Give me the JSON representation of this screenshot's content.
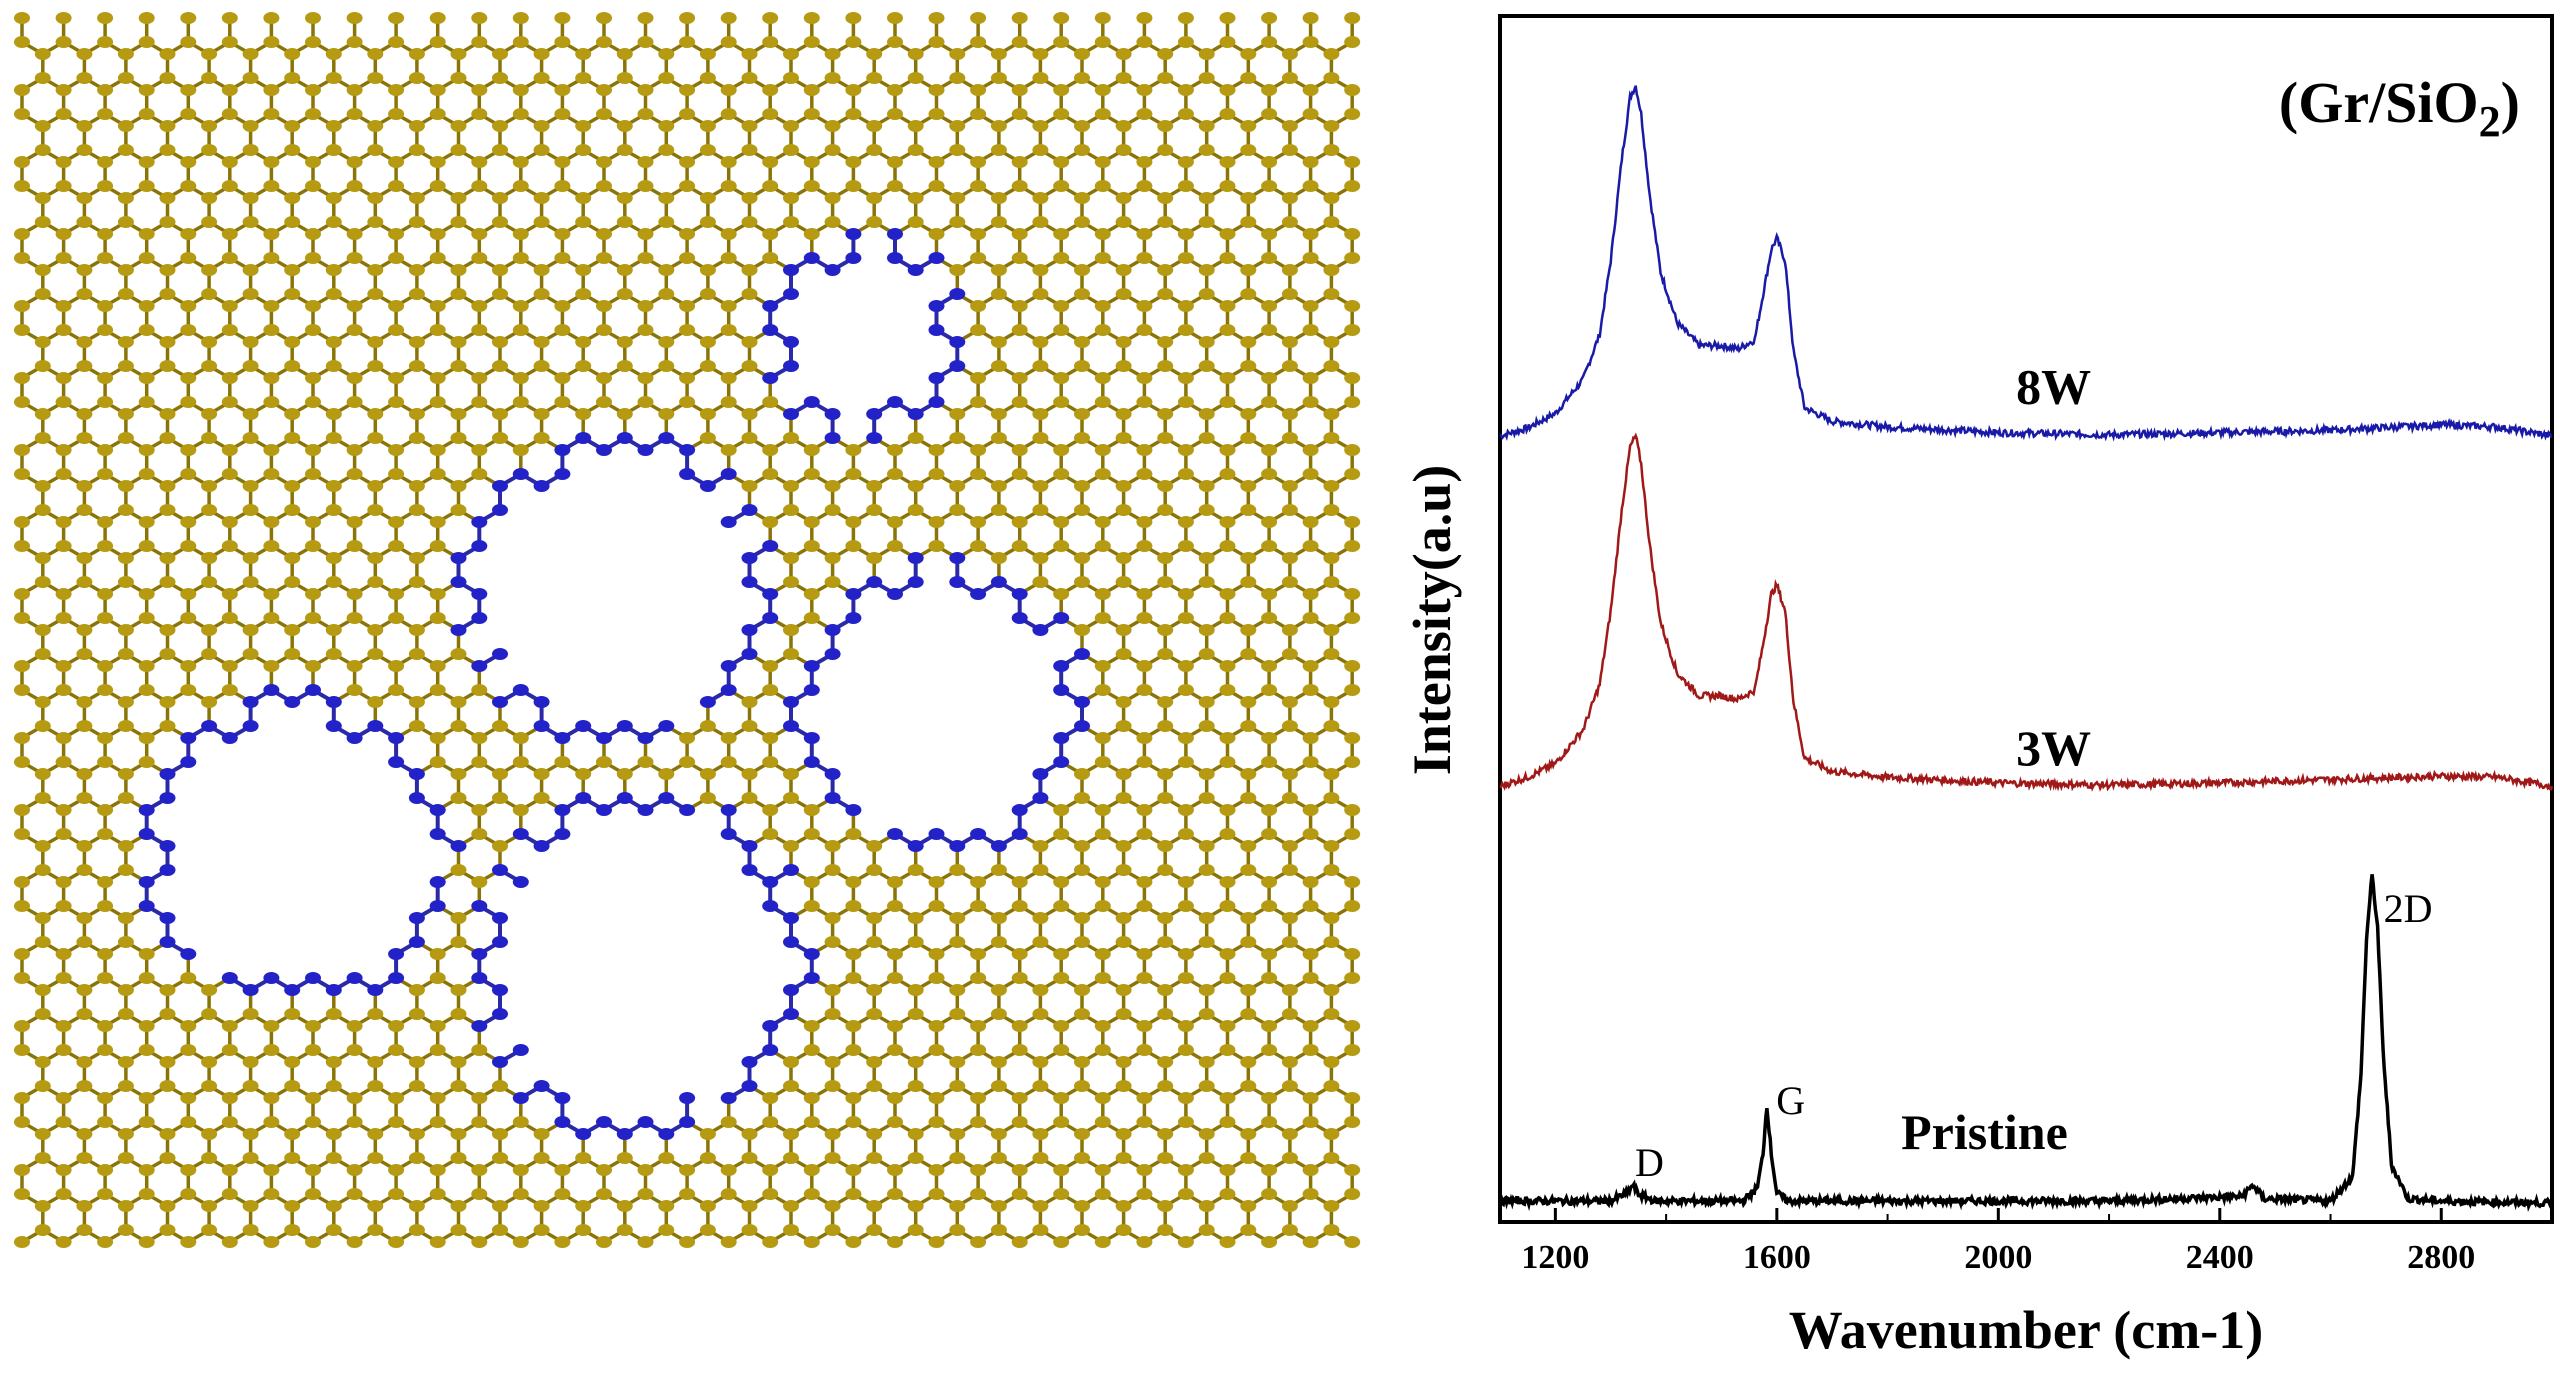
{
  "figure": {
    "lattice_colors": {
      "host_atoms": "#b59a12",
      "defect_atoms": "#2222c8",
      "bonds_host": "#8a7408",
      "bonds_defect": "#2a2aa6"
    }
  },
  "chart_data": {
    "type": "line",
    "title": "(Gr/SiO2)",
    "title_main": "(Gr/SiO",
    "title_sub": "2",
    "title_close": ")",
    "xlabel": "Wavenumber (cm-1)",
    "ylabel": "Intensity(a.u)",
    "xlim": [
      1100,
      3000
    ],
    "ylim": [
      0,
      1
    ],
    "xticks": [
      1200,
      1600,
      2000,
      2400,
      2800
    ],
    "yticks_shown": false,
    "grid": false,
    "series": [
      {
        "name": "8W",
        "color": "#1a1aa8",
        "offset": 0.68,
        "x": [
          1100,
          1150,
          1200,
          1250,
          1280,
          1300,
          1320,
          1335,
          1345,
          1355,
          1370,
          1390,
          1420,
          1460,
          1500,
          1530,
          1560,
          1575,
          1590,
          1600,
          1615,
          1630,
          1650,
          1700,
          1800,
          2000,
          2200,
          2400,
          2600,
          2800,
          2900,
          3000
        ],
        "y": [
          0.685,
          0.692,
          0.705,
          0.735,
          0.775,
          0.84,
          0.93,
          0.985,
          0.995,
          0.97,
          0.9,
          0.83,
          0.785,
          0.765,
          0.765,
          0.762,
          0.77,
          0.81,
          0.85,
          0.86,
          0.84,
          0.76,
          0.71,
          0.698,
          0.693,
          0.688,
          0.686,
          0.688,
          0.69,
          0.695,
          0.693,
          0.685
        ]
      },
      {
        "name": "3W",
        "color": "#a01818",
        "offset": 0.37,
        "x": [
          1100,
          1150,
          1200,
          1250,
          1280,
          1300,
          1320,
          1335,
          1345,
          1355,
          1370,
          1390,
          1420,
          1460,
          1500,
          1530,
          1560,
          1575,
          1590,
          1600,
          1615,
          1630,
          1650,
          1700,
          1800,
          2000,
          2200,
          2400,
          2600,
          2800,
          2900,
          3000
        ],
        "y": [
          0.375,
          0.383,
          0.395,
          0.425,
          0.465,
          0.53,
          0.62,
          0.675,
          0.685,
          0.66,
          0.59,
          0.52,
          0.475,
          0.455,
          0.455,
          0.452,
          0.46,
          0.5,
          0.545,
          0.553,
          0.53,
          0.45,
          0.4,
          0.388,
          0.383,
          0.378,
          0.376,
          0.378,
          0.381,
          0.384,
          0.383,
          0.375
        ]
      },
      {
        "name": "Pristine",
        "color": "#000000",
        "offset": 0.0,
        "x": [
          1100,
          1300,
          1330,
          1340,
          1350,
          1380,
          1540,
          1565,
          1575,
          1582,
          1590,
          1600,
          1620,
          1800,
          2200,
          2440,
          2460,
          2480,
          2600,
          2640,
          2655,
          2665,
          2675,
          2685,
          2695,
          2710,
          2740,
          2800,
          3000
        ],
        "y": [
          0.008,
          0.008,
          0.015,
          0.022,
          0.014,
          0.008,
          0.008,
          0.02,
          0.05,
          0.093,
          0.05,
          0.015,
          0.008,
          0.008,
          0.008,
          0.012,
          0.022,
          0.01,
          0.008,
          0.03,
          0.12,
          0.24,
          0.296,
          0.25,
          0.14,
          0.04,
          0.01,
          0.008,
          0.006
        ]
      }
    ],
    "series_labels": [
      {
        "text": "8W",
        "x": 2100,
        "y": 0.705
      },
      {
        "text": "3W",
        "x": 2100,
        "y": 0.385
      },
      {
        "text": "Pristine",
        "x": 1975,
        "y": 0.045
      }
    ],
    "annotations": [
      {
        "text": "D",
        "x": 1370,
        "y": 0.03
      },
      {
        "text": "G",
        "x": 1625,
        "y": 0.085
      },
      {
        "text": "2D",
        "x": 2740,
        "y": 0.255
      }
    ]
  }
}
